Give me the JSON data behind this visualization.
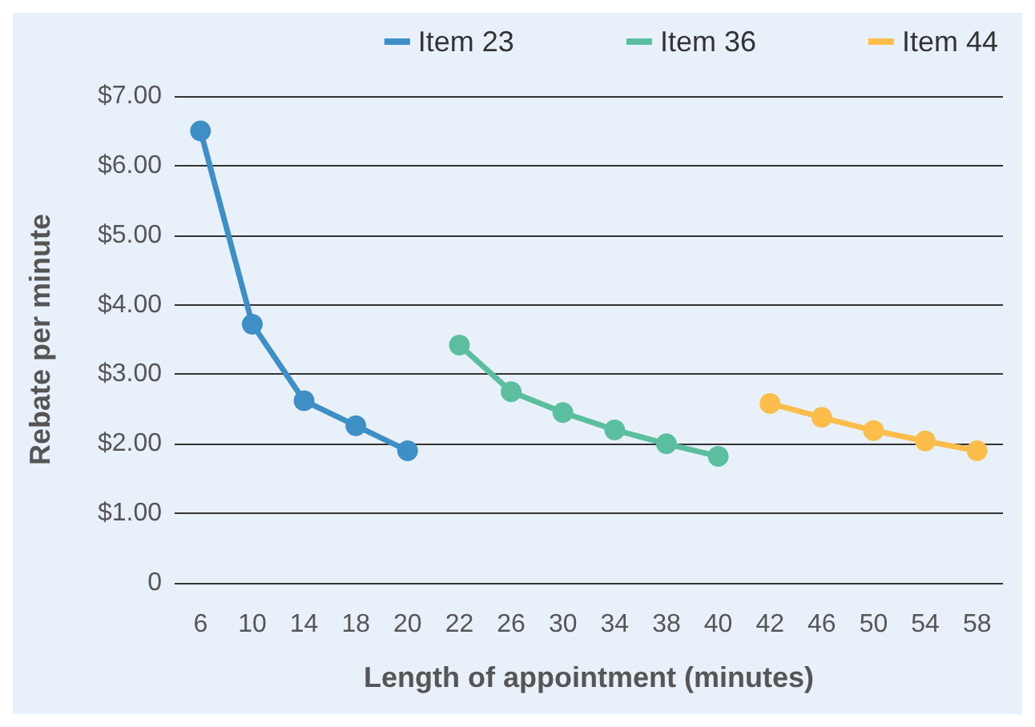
{
  "chart_data": {
    "type": "line",
    "xlabel": "Length of appointment (minutes)",
    "ylabel": "Rebate per minute",
    "categories": [
      "6",
      "10",
      "14",
      "18",
      "20",
      "22",
      "26",
      "30",
      "34",
      "38",
      "40",
      "42",
      "46",
      "50",
      "54",
      "58"
    ],
    "series": [
      {
        "name": "Item 23",
        "color": "#3d8fc6",
        "values": [
          6.5,
          3.72,
          2.62,
          2.26,
          1.9,
          null,
          null,
          null,
          null,
          null,
          null,
          null,
          null,
          null,
          null,
          null
        ]
      },
      {
        "name": "Item 36",
        "color": "#5bbf9f",
        "values": [
          null,
          null,
          null,
          null,
          null,
          3.42,
          2.75,
          2.45,
          2.2,
          2.0,
          1.82,
          null,
          null,
          null,
          null,
          null
        ]
      },
      {
        "name": "Item 44",
        "color": "#fdbd4a",
        "values": [
          null,
          null,
          null,
          null,
          null,
          null,
          null,
          null,
          null,
          null,
          null,
          2.58,
          2.38,
          2.19,
          2.04,
          1.9
        ]
      }
    ],
    "ylim": [
      0,
      7
    ],
    "yticks": [
      {
        "value": 0,
        "label": "0"
      },
      {
        "value": 1,
        "label": "$1.00"
      },
      {
        "value": 2,
        "label": "$2.00"
      },
      {
        "value": 3,
        "label": "$3.00"
      },
      {
        "value": 4,
        "label": "$4.00"
      },
      {
        "value": 5,
        "label": "$5.00"
      },
      {
        "value": 6,
        "label": "$6.00"
      },
      {
        "value": 7,
        "label": "$7.00"
      }
    ],
    "grid": "y",
    "legend": "top",
    "marker": "circle",
    "line_style": "solid"
  }
}
